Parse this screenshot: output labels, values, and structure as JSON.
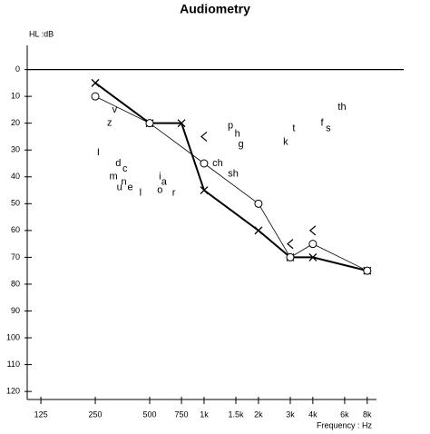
{
  "chart_data": {
    "type": "audiogram",
    "title": "Audiometry",
    "y_label": "HL :dB",
    "x_label": "Frequency : Hz",
    "xscale": "log",
    "xlim": [
      105,
      9000
    ],
    "ylim": [
      -9,
      123
    ],
    "y_inverted": true,
    "xticks": [
      {
        "value": 125,
        "label": "125"
      },
      {
        "value": 250,
        "label": "250"
      },
      {
        "value": 500,
        "label": "500"
      },
      {
        "value": 750,
        "label": "750"
      },
      {
        "value": 1000,
        "label": "1k"
      },
      {
        "value": 1500,
        "label": "1.5k"
      },
      {
        "value": 2000,
        "label": "2k"
      },
      {
        "value": 3000,
        "label": "3k"
      },
      {
        "value": 4000,
        "label": "4k"
      },
      {
        "value": 6000,
        "label": "6k"
      },
      {
        "value": 8000,
        "label": "8k"
      }
    ],
    "yticks": [
      0,
      10,
      20,
      30,
      40,
      50,
      60,
      70,
      80,
      90,
      100,
      110,
      120
    ],
    "series": [
      {
        "marker": "x",
        "line": "bold",
        "color": "#000000",
        "x": [
          250,
          500,
          750,
          1000,
          2000,
          3000,
          4000,
          8000
        ],
        "values": [
          5,
          20,
          20,
          45,
          60,
          70,
          70,
          75
        ]
      },
      {
        "marker": "o",
        "line": "thin",
        "color": "#000000",
        "x": [
          250,
          500,
          1000,
          2000,
          3000,
          4000,
          8000
        ],
        "values": [
          10,
          20,
          35,
          50,
          70,
          65,
          75
        ]
      },
      {
        "marker": "<",
        "line": "none",
        "color": "#000000",
        "x": [
          1000,
          3000,
          4000
        ],
        "values": [
          25,
          65,
          60
        ]
      }
    ],
    "annotations": [
      {
        "text": "z",
        "x": 300,
        "y": 20
      },
      {
        "text": "v",
        "x": 320,
        "y": 15
      },
      {
        "text": "I",
        "x": 260,
        "y": 31
      },
      {
        "text": "d",
        "x": 335,
        "y": 35
      },
      {
        "text": "c",
        "x": 365,
        "y": 37
      },
      {
        "text": "m",
        "x": 315,
        "y": 40
      },
      {
        "text": "n",
        "x": 360,
        "y": 42
      },
      {
        "text": "u",
        "x": 340,
        "y": 44
      },
      {
        "text": "e",
        "x": 390,
        "y": 44
      },
      {
        "text": "l",
        "x": 445,
        "y": 46
      },
      {
        "text": "i",
        "x": 570,
        "y": 40
      },
      {
        "text": "o",
        "x": 570,
        "y": 45
      },
      {
        "text": "a",
        "x": 600,
        "y": 42
      },
      {
        "text": "r",
        "x": 680,
        "y": 46
      },
      {
        "text": "p",
        "x": 1400,
        "y": 21
      },
      {
        "text": "h",
        "x": 1530,
        "y": 24
      },
      {
        "text": "g",
        "x": 1600,
        "y": 28
      },
      {
        "text": "k",
        "x": 2830,
        "y": 27
      },
      {
        "text": "t",
        "x": 3140,
        "y": 22
      },
      {
        "text": "f",
        "x": 4500,
        "y": 20
      },
      {
        "text": "s",
        "x": 4870,
        "y": 22
      },
      {
        "text": "th",
        "x": 5800,
        "y": 14
      },
      {
        "text": "ch",
        "x": 1190,
        "y": 35
      },
      {
        "text": "sh",
        "x": 1450,
        "y": 39
      }
    ]
  }
}
